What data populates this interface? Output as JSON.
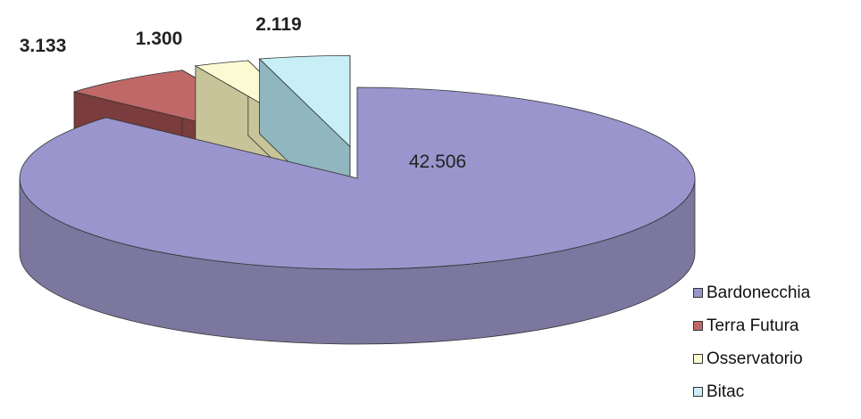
{
  "chart_data": {
    "type": "pie",
    "style": "3d-exploded",
    "categories": [
      "Bardonecchia",
      "Terra Futura",
      "Osservatorio",
      "Bitac"
    ],
    "values": [
      42.506,
      3.133,
      1.3,
      2.119
    ],
    "value_labels": [
      "42.506",
      "3.133",
      "1.300",
      "2.119"
    ],
    "colors": [
      "#9a95cc",
      "#c06868",
      "#fcfad2",
      "#c8eef6"
    ],
    "side_colors": [
      "#7c779f",
      "#7a3c3c",
      "#c8c499",
      "#90b6c0"
    ],
    "legend_position": "right-bottom",
    "title": ""
  }
}
